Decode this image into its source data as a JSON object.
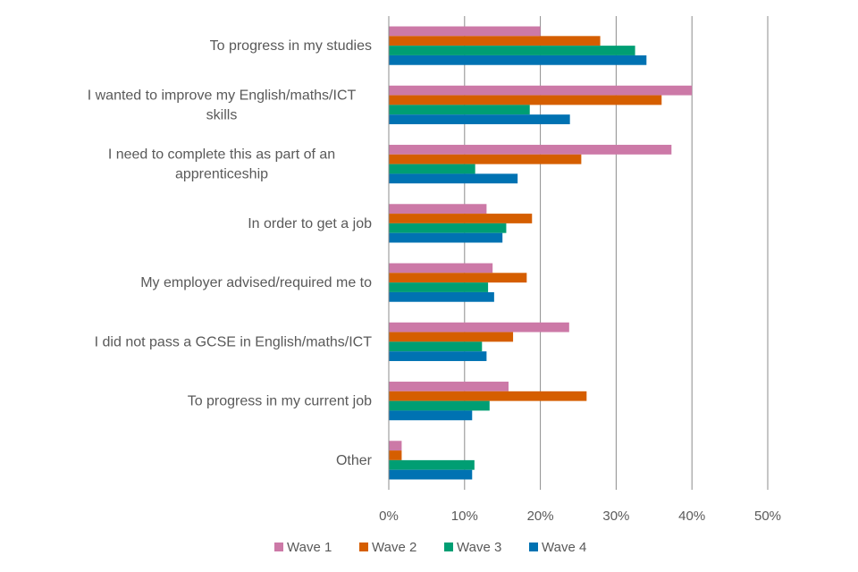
{
  "chart_data": {
    "type": "bar",
    "orientation": "horizontal",
    "title": "",
    "xlabel": "",
    "ylabel": "",
    "xlim": [
      0,
      50
    ],
    "x_ticks": [
      "0%",
      "10%",
      "20%",
      "30%",
      "40%",
      "50%"
    ],
    "x_tick_values": [
      0,
      10,
      20,
      30,
      40,
      50
    ],
    "grid": true,
    "legend_position": "bottom",
    "categories": [
      {
        "lines": [
          "To progress in my studies"
        ]
      },
      {
        "lines": [
          "I wanted to improve my English/maths/ICT",
          "skills"
        ]
      },
      {
        "lines": [
          "I need to complete this as part of an",
          "apprenticeship"
        ]
      },
      {
        "lines": [
          "In order to get a job"
        ]
      },
      {
        "lines": [
          "My employer advised/required me to"
        ]
      },
      {
        "lines": [
          "I did not pass a GCSE in English/maths/ICT"
        ]
      },
      {
        "lines": [
          "To progress in my current job"
        ]
      },
      {
        "lines": [
          "Other"
        ]
      }
    ],
    "series": [
      {
        "name": "Wave 1",
        "color": "#CC79A7",
        "values": [
          20,
          40,
          37.3,
          12.9,
          13.7,
          23.8,
          15.8,
          1.7
        ]
      },
      {
        "name": "Wave 2",
        "color": "#D55E00",
        "values": [
          27.9,
          36,
          25.4,
          18.9,
          18.2,
          16.4,
          26.1,
          1.7
        ]
      },
      {
        "name": "Wave 3",
        "color": "#009E73",
        "values": [
          32.5,
          18.6,
          11.4,
          15.5,
          13.1,
          12.3,
          13.3,
          11.3
        ]
      },
      {
        "name": "Wave 4",
        "color": "#0072B2",
        "values": [
          34,
          23.9,
          17,
          15,
          13.9,
          12.9,
          11,
          11
        ]
      }
    ]
  }
}
